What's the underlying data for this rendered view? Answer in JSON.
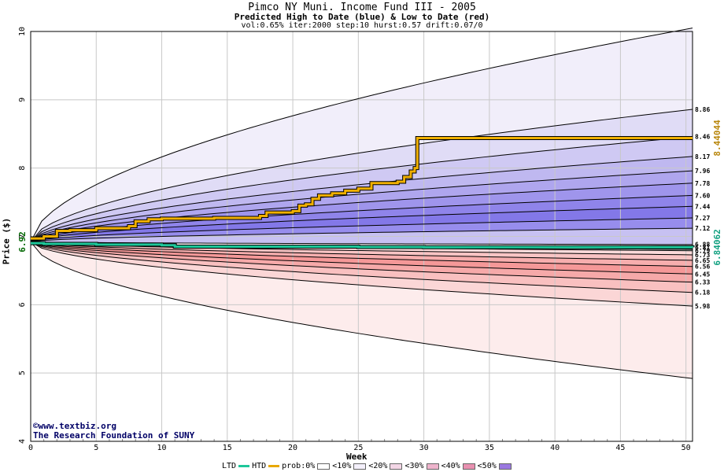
{
  "header": {
    "title": "Pimco NY Muni. Income Fund III - 2005",
    "subtitle": "Predicted High to Date (blue) &  Low to Date (red)",
    "params": "vol:0.65% iter:2000 step:10 hurst:0.57 drift:0.07/0"
  },
  "credits": {
    "line1": "©www.textbiz.org",
    "line2": "The Research Foundation of SUNY"
  },
  "legend": {
    "ltd": "LTD",
    "htd": "HTD",
    "prob": "prob:0%",
    "b10": "<10%",
    "b20": "<20%",
    "b30": "<30%",
    "b40": "<40%",
    "b50": "<50%"
  },
  "chart_data": {
    "type": "area",
    "xlabel": "Week",
    "ylabel": "Price ($)",
    "xlim": [
      0,
      50.5
    ],
    "ylim": [
      4,
      10
    ],
    "x_ticks": [
      0,
      5,
      10,
      15,
      20,
      25,
      30,
      35,
      40,
      45,
      50
    ],
    "y_ticks": [
      4,
      5,
      6,
      7,
      8,
      9,
      10
    ],
    "grid": true,
    "start_price": 6.92,
    "start_price_label": "6.92",
    "high_bound_labels": [
      "8.86",
      "8.46",
      "8.17",
      "7.96",
      "7.78",
      "7.60",
      "7.44",
      "7.27",
      "7.12"
    ],
    "low_bound_labels": [
      "6.88",
      "6.81",
      "6.79",
      "6.73",
      "6.65",
      "6.56",
      "6.45",
      "6.33",
      "6.18",
      "5.98"
    ],
    "high_bounds_end": [
      8.86,
      8.46,
      8.17,
      7.96,
      7.78,
      7.6,
      7.44,
      7.27,
      7.12,
      6.88
    ],
    "low_bounds_end": [
      6.81,
      6.79,
      6.73,
      6.65,
      6.56,
      6.45,
      6.33,
      6.18,
      5.98
    ],
    "outer_high_end": 10.05,
    "outer_low_end": 4.92,
    "htd_final_value": "8.44044",
    "ltd_final_value": "6.84062",
    "htd_series": {
      "name": "HTD",
      "points": [
        [
          0,
          6.97
        ],
        [
          1,
          7.0
        ],
        [
          2,
          7.08
        ],
        [
          3,
          7.09
        ],
        [
          5,
          7.12
        ],
        [
          7.5,
          7.15
        ],
        [
          8,
          7.22
        ],
        [
          9,
          7.25
        ],
        [
          10,
          7.26
        ],
        [
          14,
          7.27
        ],
        [
          17.5,
          7.3
        ],
        [
          18,
          7.35
        ],
        [
          20,
          7.37
        ],
        [
          20.5,
          7.45
        ],
        [
          21,
          7.47
        ],
        [
          21.5,
          7.55
        ],
        [
          22,
          7.6
        ],
        [
          23,
          7.63
        ],
        [
          24,
          7.67
        ],
        [
          25,
          7.7
        ],
        [
          26,
          7.78
        ],
        [
          28,
          7.8
        ],
        [
          28.5,
          7.87
        ],
        [
          29,
          7.95
        ],
        [
          29.3,
          8.0
        ],
        [
          29.5,
          8.44
        ],
        [
          50.5,
          8.44
        ]
      ]
    },
    "ltd_series": {
      "name": "LTD",
      "points": [
        [
          0,
          6.9
        ],
        [
          1,
          6.89
        ],
        [
          5,
          6.88
        ],
        [
          10,
          6.87
        ],
        [
          11,
          6.85
        ],
        [
          25,
          6.845
        ],
        [
          30,
          6.842
        ],
        [
          50.5,
          6.84
        ]
      ]
    }
  }
}
